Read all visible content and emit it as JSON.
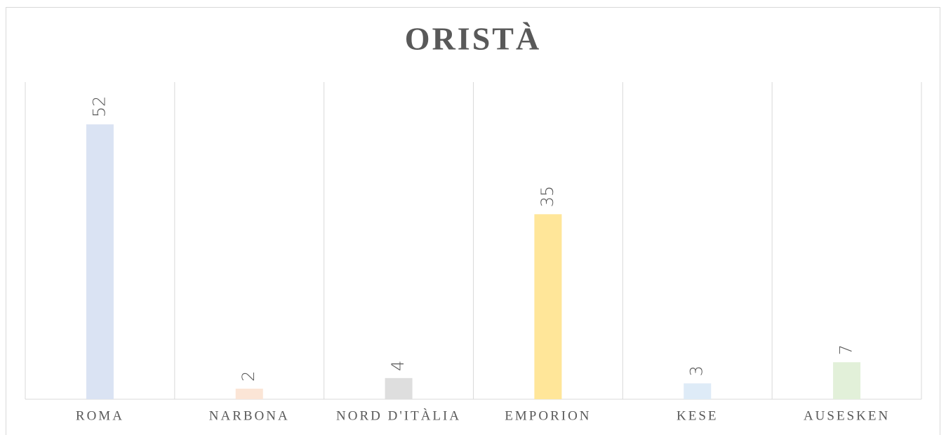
{
  "chart_data": {
    "type": "bar",
    "title": "ORISTÀ",
    "categories": [
      "ROMA",
      "NARBONA",
      "NORD D'ITÀLIA",
      "EMPORION",
      "KESE",
      "AUSESKEN"
    ],
    "values": [
      52,
      2,
      4,
      35,
      3,
      7
    ],
    "colors": [
      "#dae3f3",
      "#fbe5d6",
      "#dedede",
      "#ffe699",
      "#deebf7",
      "#e2f0d9"
    ],
    "ylim": [
      0,
      60
    ],
    "grid": true
  }
}
